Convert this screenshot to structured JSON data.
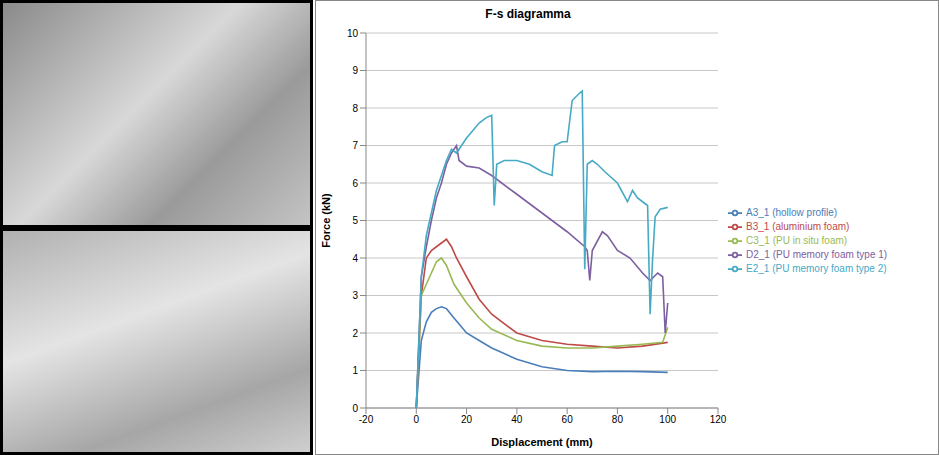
{
  "chart_data": {
    "type": "line",
    "title": "F-s diagramma",
    "x_label": "Displacement (mm)",
    "y_label": "Force (kN)",
    "xlim": [
      -20,
      120
    ],
    "xticks": [
      -20,
      0,
      20,
      40,
      60,
      80,
      100,
      120
    ],
    "ylim": [
      0,
      10
    ],
    "yticks": [
      0,
      1,
      2,
      3,
      4,
      5,
      6,
      7,
      8,
      9,
      10
    ],
    "grid": true,
    "legend": "right",
    "series": [
      {
        "name": "A3_1 (hollow profile)",
        "color": "#4a7ebb",
        "x": [
          0,
          2,
          4,
          6,
          8,
          10,
          12,
          15,
          20,
          25,
          30,
          40,
          50,
          60,
          70,
          80,
          90,
          100
        ],
        "values": [
          0,
          1.8,
          2.3,
          2.55,
          2.65,
          2.7,
          2.65,
          2.4,
          2.0,
          1.8,
          1.6,
          1.3,
          1.1,
          1.0,
          0.97,
          0.98,
          0.97,
          0.95
        ]
      },
      {
        "name": "B3_1 (aluminium foam)",
        "color": "#be4b48",
        "x": [
          0,
          2,
          4,
          6,
          8,
          10,
          12,
          14,
          16,
          20,
          25,
          30,
          40,
          50,
          60,
          70,
          80,
          90,
          100
        ],
        "values": [
          0,
          3.0,
          4.0,
          4.2,
          4.3,
          4.4,
          4.5,
          4.3,
          4.0,
          3.5,
          2.9,
          2.5,
          2.0,
          1.8,
          1.7,
          1.65,
          1.6,
          1.65,
          1.75
        ]
      },
      {
        "name": "C3_1 (PU in situ foam)",
        "color": "#98b954",
        "x": [
          0,
          2,
          4,
          6,
          8,
          10,
          12,
          15,
          20,
          25,
          30,
          40,
          50,
          60,
          70,
          80,
          90,
          98,
          100
        ],
        "values": [
          0,
          3.0,
          3.3,
          3.6,
          3.9,
          4.0,
          3.8,
          3.3,
          2.8,
          2.4,
          2.1,
          1.8,
          1.65,
          1.6,
          1.6,
          1.65,
          1.7,
          1.75,
          2.15
        ]
      },
      {
        "name": "D2_1 (PU memory foam type 1)",
        "color": "#7d60a0",
        "x": [
          0,
          2,
          4,
          6,
          8,
          10,
          12,
          14,
          16,
          17,
          20,
          25,
          30,
          40,
          50,
          60,
          67,
          68,
          69,
          70,
          74,
          76,
          80,
          85,
          90,
          93,
          96,
          98,
          99,
          100
        ],
        "values": [
          0,
          3.5,
          4.3,
          5.0,
          5.6,
          6.0,
          6.5,
          6.8,
          7.0,
          6.6,
          6.45,
          6.4,
          6.2,
          5.7,
          5.2,
          4.7,
          4.3,
          4.2,
          3.4,
          4.2,
          4.7,
          4.6,
          4.2,
          4.0,
          3.6,
          3.4,
          3.6,
          3.5,
          2.0,
          2.8
        ]
      },
      {
        "name": "E2_1 (PU memory foam type 2)",
        "color": "#46aac5",
        "x": [
          0,
          2,
          4,
          6,
          8,
          10,
          12,
          14,
          16,
          18,
          20,
          25,
          28,
          30,
          31,
          32,
          35,
          40,
          45,
          50,
          54,
          55,
          58,
          60,
          62,
          65,
          66,
          67,
          68,
          70,
          72,
          75,
          80,
          84,
          86,
          88,
          90,
          92,
          93,
          94,
          95,
          97,
          100
        ],
        "values": [
          0,
          3.5,
          4.6,
          5.2,
          5.8,
          6.2,
          6.6,
          6.9,
          6.8,
          7.0,
          7.2,
          7.6,
          7.75,
          7.8,
          5.4,
          6.5,
          6.6,
          6.6,
          6.5,
          6.3,
          6.2,
          7.0,
          7.1,
          7.1,
          8.2,
          8.4,
          8.45,
          3.7,
          6.5,
          6.6,
          6.5,
          6.3,
          6.0,
          5.5,
          5.8,
          5.6,
          5.5,
          5.4,
          2.5,
          4.0,
          5.1,
          5.3,
          5.35
        ]
      }
    ]
  }
}
